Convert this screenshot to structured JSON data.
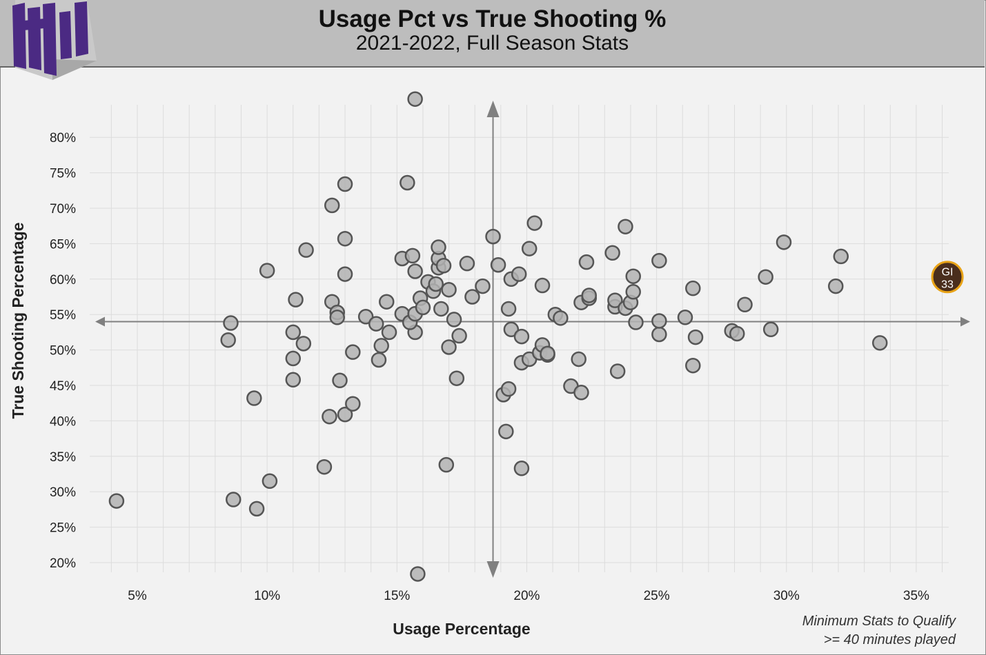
{
  "header": {
    "title": "Usage Pct vs True Shooting %",
    "subtitle": "2021-2022, Full Season Stats"
  },
  "note": {
    "line1": "Minimum Stats to Qualify",
    "line2": ">= 40 minutes played"
  },
  "colors": {
    "header_bg": "#bdbdbd",
    "logo_purple": "#4b2a83",
    "point_fill": "#b3b3b3",
    "point_stroke": "#555555",
    "highlight_fill": "#4a2e1d",
    "highlight_stroke": "#e8a317",
    "axis_line": "#808080"
  },
  "chart_data": {
    "type": "scatter",
    "xlabel": "Usage Percentage",
    "ylabel": "True Shooting Percentage",
    "xlim": [
      2.5,
      37.5
    ],
    "ylim": [
      18,
      84
    ],
    "xticks": [
      5,
      10,
      15,
      20,
      25,
      30,
      35
    ],
    "xtick_labels": [
      "5%",
      "10%",
      "15%",
      "20%",
      "25%",
      "30%",
      "35%"
    ],
    "yticks": [
      20,
      25,
      30,
      35,
      40,
      45,
      50,
      55,
      60,
      65,
      70,
      75,
      80
    ],
    "ytick_labels": [
      "20%",
      "25%",
      "30%",
      "35%",
      "40%",
      "45%",
      "50%",
      "55%",
      "60%",
      "65%",
      "70%",
      "75%",
      "80%"
    ],
    "grid": true,
    "crosshair": {
      "x": 18.7,
      "y": 54.0
    },
    "highlight": {
      "label_line1": "GI",
      "label_line2": "33",
      "x": 36.2,
      "y": 60.3
    },
    "points": [
      [
        15.7,
        85.4
      ],
      [
        15.8,
        18.4
      ],
      [
        4.2,
        28.7
      ],
      [
        8.7,
        28.9
      ],
      [
        9.6,
        27.6
      ],
      [
        10.1,
        31.5
      ],
      [
        9.5,
        43.2
      ],
      [
        8.5,
        51.4
      ],
      [
        8.6,
        53.8
      ],
      [
        10.0,
        61.2
      ],
      [
        11.1,
        57.1
      ],
      [
        11.5,
        64.1
      ],
      [
        11.0,
        52.5
      ],
      [
        11.4,
        50.9
      ],
      [
        11.0,
        48.8
      ],
      [
        11.0,
        45.8
      ],
      [
        12.2,
        33.5
      ],
      [
        12.4,
        40.6
      ],
      [
        12.5,
        70.4
      ],
      [
        13.0,
        73.4
      ],
      [
        13.0,
        65.7
      ],
      [
        13.0,
        60.7
      ],
      [
        12.5,
        56.8
      ],
      [
        12.7,
        55.3
      ],
      [
        12.7,
        54.6
      ],
      [
        12.8,
        45.7
      ],
      [
        13.0,
        40.9
      ],
      [
        13.3,
        42.4
      ],
      [
        13.3,
        49.7
      ],
      [
        13.8,
        54.7
      ],
      [
        14.2,
        53.7
      ],
      [
        14.3,
        48.6
      ],
      [
        14.4,
        50.6
      ],
      [
        14.6,
        56.8
      ],
      [
        14.7,
        52.5
      ],
      [
        15.2,
        55.1
      ],
      [
        15.2,
        62.9
      ],
      [
        15.4,
        73.6
      ],
      [
        15.6,
        63.3
      ],
      [
        15.7,
        61.1
      ],
      [
        15.7,
        52.5
      ],
      [
        15.5,
        53.9
      ],
      [
        15.7,
        55.1
      ],
      [
        15.9,
        57.3
      ],
      [
        16.0,
        56.0
      ],
      [
        16.2,
        59.6
      ],
      [
        16.4,
        58.3
      ],
      [
        16.5,
        59.3
      ],
      [
        16.6,
        61.6
      ],
      [
        16.6,
        62.9
      ],
      [
        16.6,
        64.5
      ],
      [
        16.8,
        61.9
      ],
      [
        16.7,
        55.8
      ],
      [
        16.9,
        33.8
      ],
      [
        17.0,
        50.4
      ],
      [
        17.0,
        58.5
      ],
      [
        17.2,
        54.3
      ],
      [
        17.3,
        46.0
      ],
      [
        17.4,
        52.0
      ],
      [
        17.7,
        62.2
      ],
      [
        17.9,
        57.5
      ],
      [
        18.3,
        59.0
      ],
      [
        18.7,
        66.0
      ],
      [
        18.9,
        62.0
      ],
      [
        19.1,
        43.7
      ],
      [
        19.2,
        38.5
      ],
      [
        19.3,
        55.8
      ],
      [
        19.3,
        44.5
      ],
      [
        19.4,
        52.9
      ],
      [
        19.4,
        60.0
      ],
      [
        19.7,
        60.7
      ],
      [
        19.8,
        51.9
      ],
      [
        19.8,
        48.2
      ],
      [
        19.8,
        33.3
      ],
      [
        20.1,
        64.3
      ],
      [
        20.1,
        48.7
      ],
      [
        20.3,
        67.9
      ],
      [
        20.5,
        49.6
      ],
      [
        20.6,
        50.7
      ],
      [
        20.6,
        59.1
      ],
      [
        20.8,
        49.3
      ],
      [
        20.8,
        49.5
      ],
      [
        21.1,
        55.0
      ],
      [
        21.3,
        54.5
      ],
      [
        21.7,
        44.9
      ],
      [
        22.0,
        48.7
      ],
      [
        22.1,
        44.0
      ],
      [
        22.1,
        56.7
      ],
      [
        22.3,
        62.4
      ],
      [
        22.4,
        57.3
      ],
      [
        22.4,
        57.7
      ],
      [
        23.3,
        63.7
      ],
      [
        23.4,
        56.1
      ],
      [
        23.4,
        57.0
      ],
      [
        23.5,
        47.0
      ],
      [
        23.8,
        67.4
      ],
      [
        23.8,
        55.9
      ],
      [
        24.0,
        56.7
      ],
      [
        24.1,
        60.4
      ],
      [
        24.1,
        58.2
      ],
      [
        24.2,
        53.9
      ],
      [
        25.1,
        62.6
      ],
      [
        25.1,
        52.2
      ],
      [
        25.1,
        54.1
      ],
      [
        26.1,
        54.6
      ],
      [
        26.4,
        58.7
      ],
      [
        26.4,
        47.8
      ],
      [
        26.5,
        51.8
      ],
      [
        27.9,
        52.7
      ],
      [
        28.1,
        52.3
      ],
      [
        28.4,
        56.4
      ],
      [
        29.2,
        60.3
      ],
      [
        29.4,
        52.9
      ],
      [
        29.9,
        65.2
      ],
      [
        31.9,
        59.0
      ],
      [
        32.1,
        63.2
      ],
      [
        33.6,
        51.0
      ]
    ]
  }
}
